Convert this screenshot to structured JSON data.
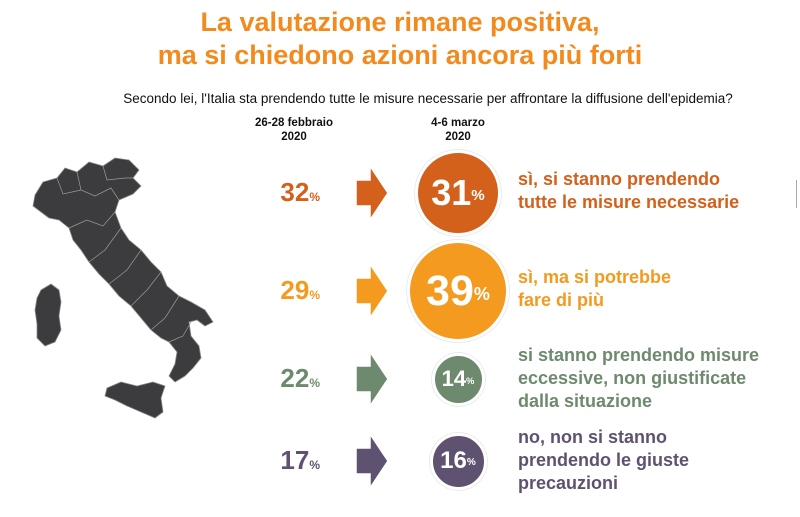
{
  "title_line1": "La valutazione rimane positiva,",
  "title_line2": "ma si chiedono azioni ancora più forti",
  "question": "Secondo lei, l'Italia sta prendendo tutte le misure necessarie per affrontare la diffusione dell'epidemia?",
  "chart_data": {
    "type": "table",
    "columns": [
      "26-28 febbraio 2020",
      "4-6 marzo 2020"
    ],
    "column_headers": [
      {
        "line1": "26-28 febbraio",
        "line2": "2020"
      },
      {
        "line1": "4-6 marzo",
        "line2": "2020"
      }
    ],
    "rows": [
      {
        "label": "sì, si stanno prendendo tutte le misure necessarie",
        "before": 32,
        "after": 31,
        "color": "#D3611C"
      },
      {
        "label": "sì, ma si potrebbe fare di più",
        "before": 29,
        "after": 39,
        "color": "#F39A1F"
      },
      {
        "label": "si stanno prendendo misure eccessive, non giustificate dalla situazione",
        "before": 22,
        "after": 14,
        "color": "#6E8A6E"
      },
      {
        "label": "no, non si stanno prendendo le giuste precauzioni",
        "before": 17,
        "after": 16,
        "color": "#5F5270"
      }
    ],
    "unit": "%"
  },
  "rows_text": [
    {
      "before": "32",
      "after": "31",
      "label_lines": [
        "sì, si stanno prendendo",
        "tutte le misure necessarie"
      ]
    },
    {
      "before": "29",
      "after": "39",
      "label_lines": [
        "sì, ma si potrebbe",
        "fare di più"
      ]
    },
    {
      "before": "22",
      "after": "14",
      "label_lines": [
        "si stanno prendendo misure",
        "eccessive, non giustificate",
        "dalla situazione"
      ]
    },
    {
      "before": "17",
      "after": "16",
      "label_lines": [
        "no, non si stanno",
        "prendendo le giuste",
        "precauzioni"
      ]
    }
  ],
  "percent_sign": "%",
  "map_icon": "italy-map-icon",
  "map_color": "#3C3C3E"
}
